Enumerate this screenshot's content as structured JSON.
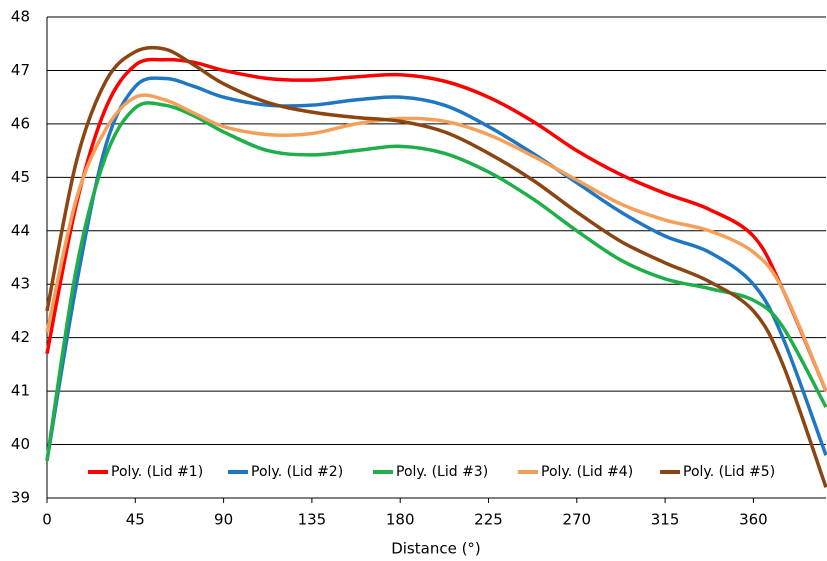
{
  "chart_data": {
    "type": "line",
    "x_label": "Distance (°)",
    "x": [
      0,
      15,
      30,
      45,
      60,
      75,
      90,
      112.5,
      135,
      157.5,
      180,
      202.5,
      225,
      247.5,
      270,
      292.5,
      315,
      337.5,
      360,
      375,
      397
    ],
    "series": [
      {
        "name": "Poly. (Lid #1)",
        "color": "#ff0000",
        "values": [
          41.7,
          44.5,
          46.3,
          47.1,
          47.2,
          47.15,
          47.0,
          46.85,
          46.82,
          46.88,
          46.92,
          46.8,
          46.5,
          46.05,
          45.5,
          45.05,
          44.7,
          44.4,
          43.9,
          42.9,
          41.0
        ]
      },
      {
        "name": "Poly. (Lid #2)",
        "color": "#1f77c4",
        "values": [
          39.7,
          43.0,
          45.6,
          46.7,
          46.85,
          46.7,
          46.5,
          46.35,
          46.35,
          46.45,
          46.5,
          46.35,
          45.95,
          45.45,
          44.9,
          44.35,
          43.9,
          43.6,
          43.0,
          42.0,
          39.8
        ]
      },
      {
        "name": "Poly. (Lid #3)",
        "color": "#1fae4a",
        "values": [
          39.7,
          43.3,
          45.4,
          46.3,
          46.35,
          46.15,
          45.85,
          45.5,
          45.42,
          45.5,
          45.58,
          45.45,
          45.1,
          44.6,
          44.0,
          43.45,
          43.1,
          42.92,
          42.7,
          42.2,
          40.7
        ]
      },
      {
        "name": "Poly. (Lid #4)",
        "color": "#f5a05a",
        "values": [
          42.1,
          44.6,
          45.9,
          46.5,
          46.45,
          46.2,
          45.95,
          45.8,
          45.82,
          46.0,
          46.1,
          46.05,
          45.8,
          45.4,
          44.95,
          44.5,
          44.2,
          44.0,
          43.6,
          42.9,
          41.0
        ]
      },
      {
        "name": "Poly. (Lid #5)",
        "color": "#8b4513",
        "values": [
          42.5,
          45.3,
          46.8,
          47.35,
          47.4,
          47.1,
          46.75,
          46.4,
          46.22,
          46.12,
          46.05,
          45.85,
          45.45,
          44.95,
          44.35,
          43.8,
          43.4,
          43.05,
          42.5,
          41.5,
          39.2
        ]
      }
    ],
    "xlim": [
      0,
      397
    ],
    "xticks": [
      0,
      45,
      90,
      135,
      180,
      225,
      270,
      315,
      360
    ],
    "ylim": [
      39,
      48
    ],
    "yticks": [
      39,
      40,
      41,
      42,
      43,
      44,
      45,
      46,
      47,
      48
    ],
    "grid": true,
    "legend": "bottom"
  }
}
